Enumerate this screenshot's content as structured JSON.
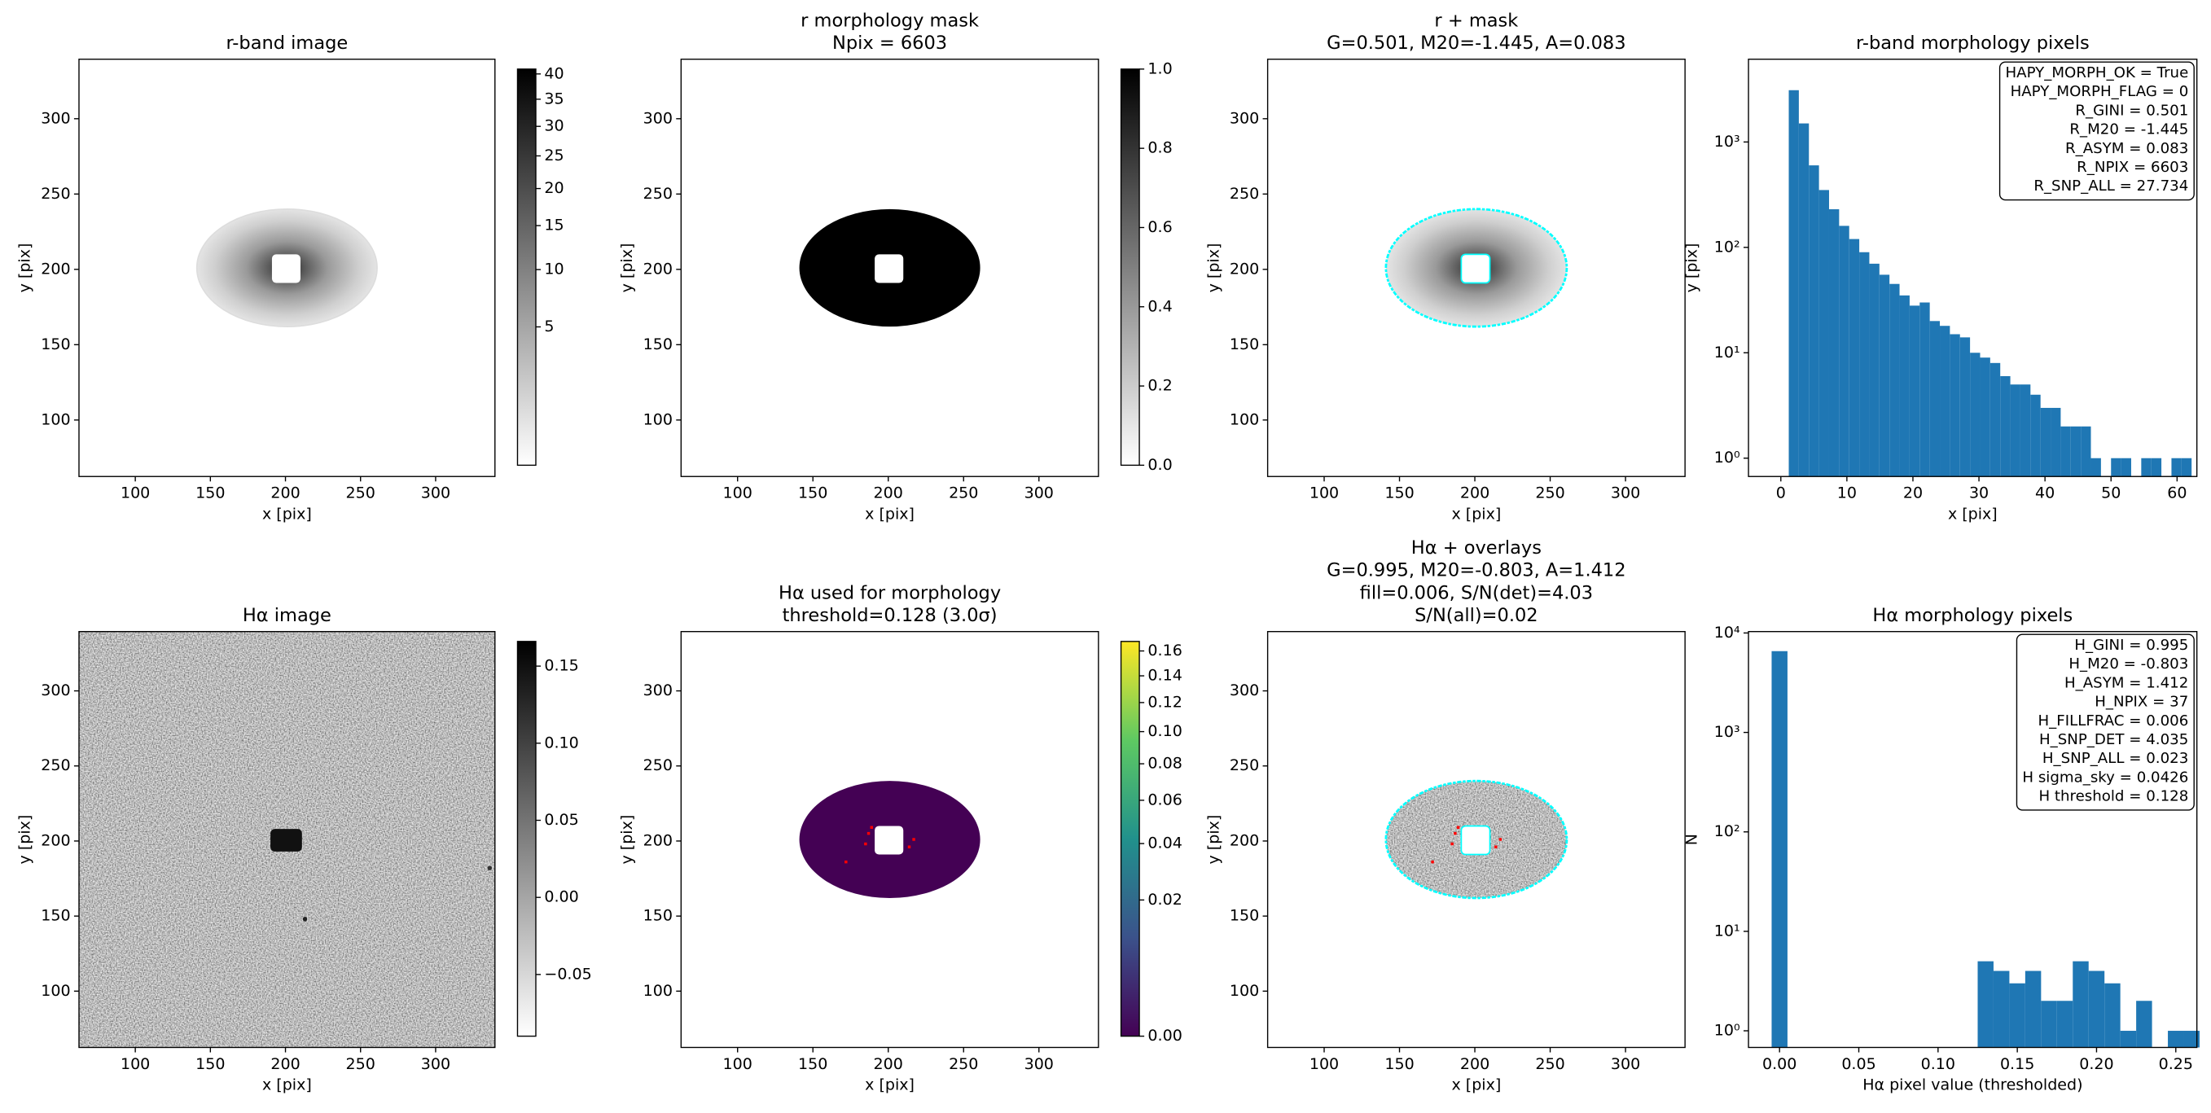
{
  "chart_data": [
    {
      "type": "image",
      "title": "r-band image",
      "xlabel": "x [pix]",
      "ylabel": "y [pix]",
      "xlim": [
        62.5,
        339.5
      ],
      "ylim": [
        62.5,
        339.5
      ],
      "xticks": [
        100,
        150,
        200,
        250,
        300
      ],
      "yticks": [
        100,
        150,
        200,
        250,
        300
      ],
      "colorbar": {
        "cmap": "gray_r",
        "scale": "sqrt",
        "clim": [
          0,
          41
        ],
        "ticks": [
          5,
          10,
          15,
          20,
          25,
          30,
          35,
          40
        ]
      }
    },
    {
      "type": "image",
      "title": [
        "r morphology mask",
        "Npix = 6603"
      ],
      "xlabel": "x [pix]",
      "ylabel": "y [pix]",
      "xlim": [
        62.5,
        339.5
      ],
      "ylim": [
        62.5,
        339.5
      ],
      "xticks": [
        100,
        150,
        200,
        250,
        300
      ],
      "yticks": [
        100,
        150,
        200,
        250,
        300
      ],
      "colorbar": {
        "cmap": "gray_r",
        "scale": "linear",
        "clim": [
          0,
          1
        ],
        "ticks": [
          {
            "value": 0,
            "label": "0.0"
          },
          0.2,
          0.4,
          0.6,
          0.8,
          {
            "value": 1,
            "label": "1.0"
          }
        ]
      }
    },
    {
      "type": "image",
      "title": [
        "r + mask",
        "G=0.501, M20=-1.445, A=0.083"
      ],
      "xlabel": "x [pix]",
      "ylabel": "y [pix]",
      "xlim": [
        62.5,
        339.5
      ],
      "ylim": [
        62.5,
        339.5
      ],
      "xticks": [
        100,
        150,
        200,
        250,
        300
      ],
      "yticks": [
        100,
        150,
        200,
        250,
        300
      ]
    },
    {
      "type": "histogram",
      "title": "r-band morphology pixels",
      "xlabel": "x [pix]",
      "ylabel": "y [pix]",
      "color": "#1f77b4",
      "log_y": true,
      "bins": [
        1.2,
        2.725,
        4.25,
        5.775,
        7.3,
        8.825,
        10.35,
        11.875,
        13.4,
        14.925,
        16.45,
        17.975,
        19.5,
        21.025,
        22.55,
        24.075,
        25.6,
        27.125,
        28.65,
        30.175,
        31.7,
        33.225,
        34.75,
        36.275,
        37.8,
        39.325,
        40.85,
        42.375,
        43.9,
        45.425,
        46.95,
        48.475,
        50.0,
        51.525,
        53.05,
        54.575,
        56.1,
        57.625,
        59.15,
        60.675,
        62.2
      ],
      "values": [
        3100,
        1500,
        600,
        350,
        230,
        160,
        120,
        90,
        70,
        55,
        45,
        35,
        28,
        30,
        20,
        18,
        15,
        14,
        10,
        9,
        8,
        6,
        5,
        5,
        4,
        3,
        3,
        2,
        2,
        2,
        1,
        0,
        1,
        1,
        0,
        1,
        1,
        0,
        1,
        1
      ],
      "xlim": [
        -4.9,
        63.0
      ],
      "ylim": [
        0.67,
        6100
      ],
      "xticks": [
        0,
        10,
        20,
        30,
        40,
        50,
        60
      ],
      "yticks": [
        {
          "value": 1,
          "label": "10⁰"
        },
        {
          "value": 10,
          "label": "10¹"
        },
        {
          "value": 100,
          "label": "10²"
        },
        {
          "value": 1000,
          "label": "10³"
        }
      ],
      "annotations": [
        "HAPY_MORPH_OK = True",
        "HAPY_MORPH_FLAG = 0",
        "R_GINI = 0.501",
        "R_M20 = -1.445",
        "R_ASYM = 0.083",
        "R_NPIX = 6603",
        "R_SNP_ALL = 27.734"
      ]
    },
    {
      "type": "image",
      "title": "Hα image",
      "xlabel": "x [pix]",
      "ylabel": "y [pix]",
      "xlim": [
        62.5,
        339.5
      ],
      "ylim": [
        62.5,
        339.5
      ],
      "xticks": [
        100,
        150,
        200,
        250,
        300
      ],
      "yticks": [
        100,
        150,
        200,
        250,
        300
      ],
      "colorbar": {
        "cmap": "gray_r",
        "scale": "linear",
        "clim": [
          -0.09,
          0.166
        ],
        "ticks": [
          {
            "value": -0.05,
            "label": "−0.05"
          },
          {
            "value": 0,
            "label": "0.00"
          },
          0.05,
          {
            "value": 0.1,
            "label": "0.10"
          },
          0.15
        ]
      }
    },
    {
      "type": "image",
      "title": [
        "Hα used for morphology",
        "threshold=0.128 (3.0σ)"
      ],
      "xlabel": "x [pix]",
      "ylabel": "y [pix]",
      "xlim": [
        62.5,
        339.5
      ],
      "ylim": [
        62.5,
        339.5
      ],
      "xticks": [
        100,
        150,
        200,
        250,
        300
      ],
      "yticks": [
        100,
        150,
        200,
        250,
        300
      ],
      "colorbar": {
        "cmap": "viridis",
        "scale": "sqrt",
        "clim": [
          0,
          0.168
        ],
        "ticks": [
          {
            "value": 0,
            "label": "0.00"
          },
          0.02,
          0.04,
          0.06,
          0.08,
          {
            "value": 0.1,
            "label": "0.10"
          },
          0.12,
          0.14,
          0.16
        ]
      }
    },
    {
      "type": "image",
      "title": [
        "Hα + overlays",
        "G=0.995, M20=-0.803, A=1.412",
        "fill=0.006, S/N(det)=4.03",
        "S/N(all)=0.02"
      ],
      "xlabel": "x [pix]",
      "ylabel": "y [pix]",
      "xlim": [
        62.5,
        339.5
      ],
      "ylim": [
        62.5,
        339.5
      ],
      "xticks": [
        100,
        150,
        200,
        250,
        300
      ],
      "yticks": [
        100,
        150,
        200,
        250,
        300
      ]
    },
    {
      "type": "histogram",
      "title": "Hα morphology pixels",
      "xlabel": "Hα pixel value (thresholded)",
      "ylabel": "N",
      "color": "#1f77b4",
      "log_y": true,
      "bins": [
        -0.005,
        0.005,
        0.015,
        0.025,
        0.035,
        0.045,
        0.055,
        0.065,
        0.075,
        0.085,
        0.095,
        0.105,
        0.115,
        0.125,
        0.135,
        0.145,
        0.155,
        0.165,
        0.175,
        0.185,
        0.195,
        0.205,
        0.215,
        0.225,
        0.235,
        0.245,
        0.255,
        0.265
      ],
      "values": [
        6566,
        0,
        0,
        0,
        0,
        0,
        0,
        0,
        0,
        0,
        0,
        0,
        0,
        5,
        4,
        3,
        4,
        2,
        2,
        5,
        4,
        3,
        1,
        2,
        0,
        1,
        1
      ],
      "xlim": [
        -0.0196,
        0.2633
      ],
      "ylim": [
        0.68,
        10330
      ],
      "xticks": [
        {
          "value": 0,
          "label": "0.00"
        },
        0.05,
        {
          "value": 0.1,
          "label": "0.10"
        },
        0.15,
        {
          "value": 0.2,
          "label": "0.20"
        },
        0.25
      ],
      "yticks": [
        {
          "value": 1,
          "label": "10⁰"
        },
        {
          "value": 10,
          "label": "10¹"
        },
        {
          "value": 100,
          "label": "10²"
        },
        {
          "value": 1000,
          "label": "10³"
        },
        {
          "value": 10000,
          "label": "10⁴"
        }
      ],
      "annotations": [
        "H_GINI = 0.995",
        "H_M20 = -0.803",
        "H_ASYM = 1.412",
        "H_NPIX = 37",
        "H_FILLFRAC = 0.006",
        "H_SNP_DET = 4.035",
        "H_SNP_ALL = 0.023",
        "H sigma_sky = 0.0426",
        "H threshold = 0.128"
      ]
    }
  ]
}
